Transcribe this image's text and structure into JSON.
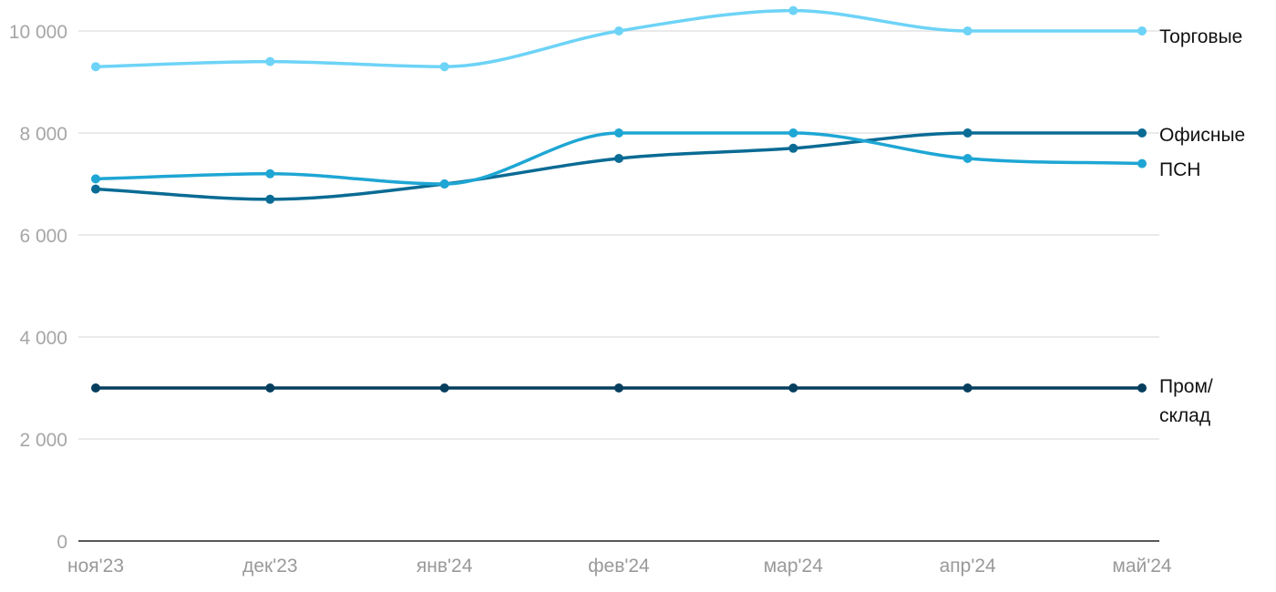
{
  "chart_data": {
    "type": "line",
    "categories": [
      "ноя'23",
      "дек'23",
      "янв'24",
      "фев'24",
      "мар'24",
      "апр'24",
      "май'24"
    ],
    "ylim": [
      0,
      10000
    ],
    "yticks": [
      "0",
      "2 000",
      "4 000",
      "6 000",
      "8 000",
      "10 000"
    ],
    "ytick_values": [
      0,
      2000,
      4000,
      6000,
      8000,
      10000
    ],
    "grid": true,
    "legend": "end-of-line labels",
    "series": [
      {
        "label_lines": [
          "Торговые"
        ],
        "color": "#6dd3f7",
        "values": [
          9300,
          9400,
          9300,
          10000,
          10400,
          10000,
          10000
        ]
      },
      {
        "label_lines": [
          "Офисные"
        ],
        "color": "#0a6b94",
        "values": [
          6900,
          6700,
          7000,
          7500,
          7700,
          8000,
          8000
        ]
      },
      {
        "label_lines": [
          "ПСН"
        ],
        "color": "#1ea6d4",
        "values": [
          7100,
          7200,
          7000,
          8000,
          8000,
          7500,
          7400
        ]
      },
      {
        "label_lines": [
          "Пром/",
          "склад"
        ],
        "color": "#063e5e",
        "values": [
          3000,
          3000,
          3000,
          3000,
          3000,
          3000,
          3000
        ]
      }
    ]
  }
}
